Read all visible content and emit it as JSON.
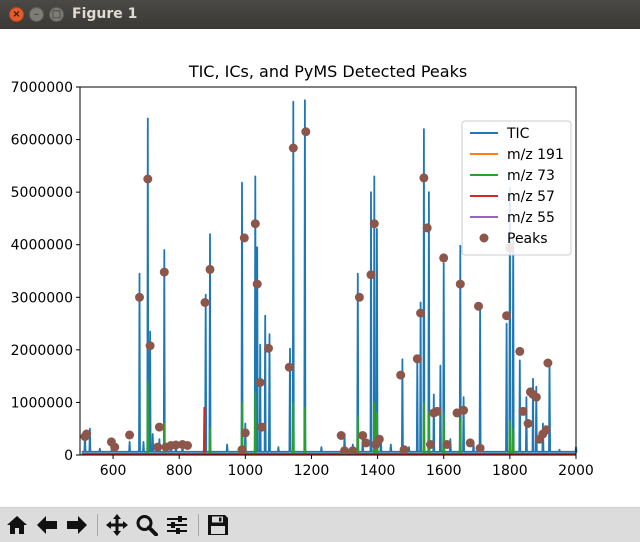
{
  "window": {
    "title": "Figure 1"
  },
  "chart_data": {
    "type": "line",
    "title": "TIC, ICs, and PyMS Detected Peaks",
    "xlabel": "",
    "ylabel": "",
    "xlim": [
      500,
      2000
    ],
    "ylim": [
      0,
      7000000
    ],
    "xticks": [
      600,
      800,
      1000,
      1200,
      1400,
      1600,
      1800,
      2000
    ],
    "yticks": [
      0,
      1000000,
      2000000,
      3000000,
      4000000,
      5000000,
      6000000,
      7000000
    ],
    "grid": false,
    "legend_position": "top-right",
    "series": [
      {
        "name": "TIC",
        "color": "#1f77b4",
        "spikes": [
          [
            515,
            450000
          ],
          [
            530,
            500000
          ],
          [
            560,
            120000
          ],
          [
            597,
            200000
          ],
          [
            603,
            150000
          ],
          [
            650,
            250000
          ],
          [
            680,
            3450000
          ],
          [
            692,
            250000
          ],
          [
            705,
            6400000
          ],
          [
            712,
            2350000
          ],
          [
            720,
            400000
          ],
          [
            740,
            300000
          ],
          [
            755,
            3900000
          ],
          [
            775,
            200000
          ],
          [
            790,
            250000
          ],
          [
            810,
            200000
          ],
          [
            880,
            3050000
          ],
          [
            893,
            4200000
          ],
          [
            945,
            200000
          ],
          [
            990,
            5180000
          ],
          [
            1000,
            600000
          ],
          [
            1030,
            5300000
          ],
          [
            1036,
            3950000
          ],
          [
            1045,
            2100000
          ],
          [
            1060,
            2650000
          ],
          [
            1073,
            2300000
          ],
          [
            1100,
            150000
          ],
          [
            1135,
            2020000
          ],
          [
            1145,
            6720000
          ],
          [
            1180,
            6750000
          ],
          [
            1230,
            150000
          ],
          [
            1300,
            400000
          ],
          [
            1325,
            200000
          ],
          [
            1340,
            3450000
          ],
          [
            1355,
            300000
          ],
          [
            1380,
            5000000
          ],
          [
            1390,
            5300000
          ],
          [
            1398,
            4300000
          ],
          [
            1410,
            350000
          ],
          [
            1440,
            200000
          ],
          [
            1475,
            1820000
          ],
          [
            1495,
            150000
          ],
          [
            1520,
            1880000
          ],
          [
            1530,
            2900000
          ],
          [
            1540,
            6200000
          ],
          [
            1555,
            5000000
          ],
          [
            1570,
            1150000
          ],
          [
            1590,
            1700000
          ],
          [
            1600,
            3650000
          ],
          [
            1620,
            300000
          ],
          [
            1650,
            3980000
          ],
          [
            1660,
            1100000
          ],
          [
            1690,
            250000
          ],
          [
            1710,
            2800000
          ],
          [
            1790,
            2500000
          ],
          [
            1800,
            5080000
          ],
          [
            1810,
            4100000
          ],
          [
            1830,
            1800000
          ],
          [
            1850,
            1100000
          ],
          [
            1870,
            1450000
          ],
          [
            1880,
            1300000
          ],
          [
            1900,
            600000
          ],
          [
            1920,
            1800000
          ],
          [
            1950,
            100000
          ],
          [
            2000,
            150000
          ]
        ]
      },
      {
        "name": "m/z 191",
        "color": "#ff7f0e",
        "spikes": []
      },
      {
        "name": "m/z 73",
        "color": "#2ca02c",
        "spikes": [
          [
            705,
            1400000
          ],
          [
            755,
            600000
          ],
          [
            893,
            500000
          ],
          [
            990,
            1000000
          ],
          [
            1000,
            200000
          ],
          [
            1030,
            1200000
          ],
          [
            1145,
            1000000
          ],
          [
            1180,
            900000
          ],
          [
            1340,
            750000
          ],
          [
            1390,
            1000000
          ],
          [
            1398,
            800000
          ],
          [
            1540,
            1000000
          ],
          [
            1555,
            800000
          ],
          [
            1600,
            800000
          ],
          [
            1650,
            700000
          ],
          [
            1800,
            650000
          ],
          [
            1810,
            500000
          ]
        ]
      },
      {
        "name": "m/z 57",
        "color": "#d62728",
        "spikes": [
          [
            876,
            900000
          ]
        ]
      },
      {
        "name": "m/z 55",
        "color": "#9467bd",
        "spikes": []
      }
    ],
    "peaks": {
      "name": "Peaks",
      "color": "#8c564b",
      "points": [
        [
          515,
          350000
        ],
        [
          520,
          400000
        ],
        [
          595,
          250000
        ],
        [
          605,
          150000
        ],
        [
          650,
          380000
        ],
        [
          680,
          3000000
        ],
        [
          705,
          5250000
        ],
        [
          712,
          2080000
        ],
        [
          735,
          150000
        ],
        [
          740,
          530000
        ],
        [
          755,
          3480000
        ],
        [
          760,
          150000
        ],
        [
          775,
          180000
        ],
        [
          790,
          190000
        ],
        [
          810,
          200000
        ],
        [
          825,
          180000
        ],
        [
          878,
          2900000
        ],
        [
          893,
          3530000
        ],
        [
          990,
          100000
        ],
        [
          997,
          4130000
        ],
        [
          1000,
          420000
        ],
        [
          1030,
          4400000
        ],
        [
          1036,
          3250000
        ],
        [
          1045,
          1380000
        ],
        [
          1050,
          530000
        ],
        [
          1070,
          2030000
        ],
        [
          1133,
          1670000
        ],
        [
          1145,
          5840000
        ],
        [
          1183,
          6150000
        ],
        [
          1290,
          370000
        ],
        [
          1300,
          80000
        ],
        [
          1325,
          80000
        ],
        [
          1345,
          3000000
        ],
        [
          1355,
          370000
        ],
        [
          1365,
          230000
        ],
        [
          1380,
          3430000
        ],
        [
          1390,
          4400000
        ],
        [
          1395,
          200000
        ],
        [
          1405,
          300000
        ],
        [
          1470,
          1520000
        ],
        [
          1480,
          100000
        ],
        [
          1520,
          1830000
        ],
        [
          1530,
          2700000
        ],
        [
          1540,
          5270000
        ],
        [
          1550,
          4320000
        ],
        [
          1560,
          200000
        ],
        [
          1570,
          800000
        ],
        [
          1580,
          830000
        ],
        [
          1600,
          3750000
        ],
        [
          1610,
          200000
        ],
        [
          1640,
          800000
        ],
        [
          1650,
          3250000
        ],
        [
          1660,
          850000
        ],
        [
          1680,
          230000
        ],
        [
          1705,
          2830000
        ],
        [
          1710,
          130000
        ],
        [
          1790,
          2650000
        ],
        [
          1800,
          3940000
        ],
        [
          1830,
          1970000
        ],
        [
          1840,
          830000
        ],
        [
          1855,
          600000
        ],
        [
          1862,
          1200000
        ],
        [
          1870,
          1150000
        ],
        [
          1880,
          1100000
        ],
        [
          1890,
          300000
        ],
        [
          1900,
          400000
        ],
        [
          1910,
          480000
        ],
        [
          1915,
          1750000
        ]
      ]
    }
  }
}
